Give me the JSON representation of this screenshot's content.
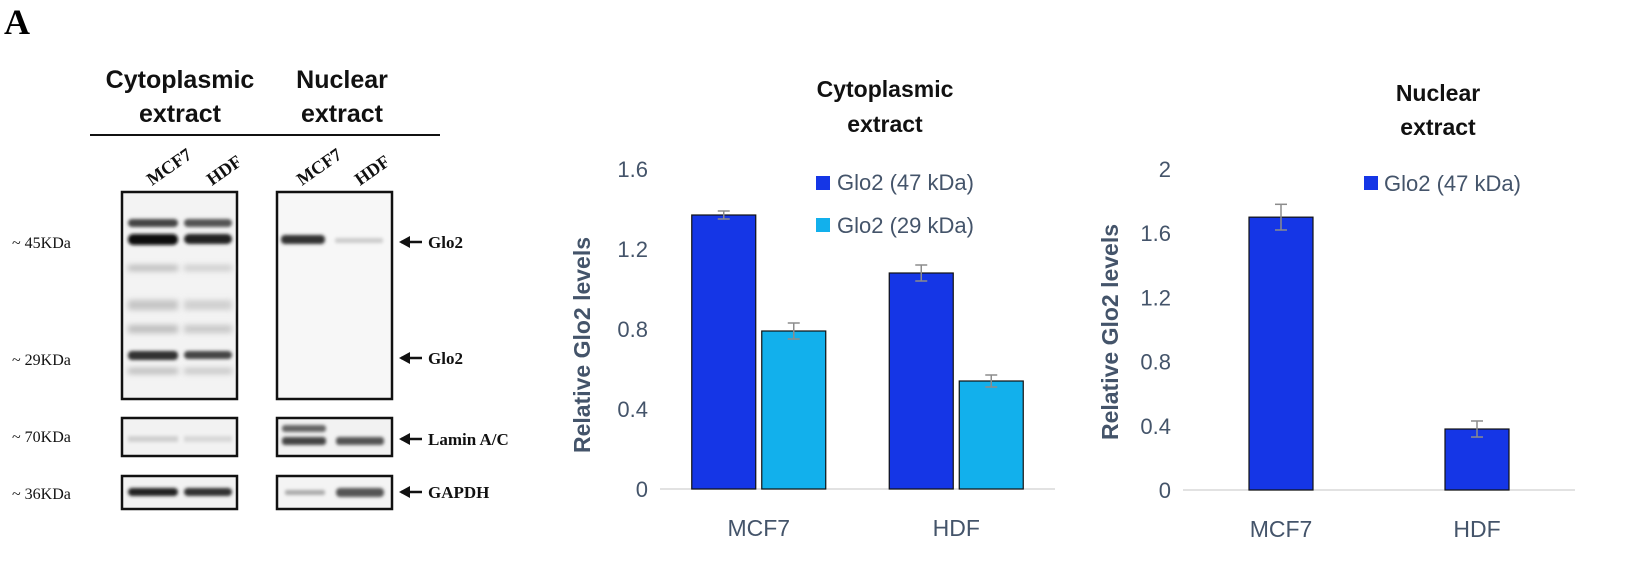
{
  "panel_letter": "A",
  "blot": {
    "cyto_header": [
      "Cytoplasmic",
      "extract"
    ],
    "nuc_header": [
      "Nuclear",
      "extract"
    ],
    "lanes": [
      "MCF7",
      "HDF",
      "MCF7",
      "HDF"
    ],
    "mw_labels": [
      "~ 45KDa",
      "~ 29KDa",
      "~ 70KDa",
      "~ 36KDa"
    ],
    "band_labels": [
      "Glo2",
      "Glo2",
      "Lamin A/C",
      "GAPDH"
    ]
  },
  "chart_data": [
    {
      "type": "bar",
      "title": [
        "Cytoplasmic",
        "extract"
      ],
      "categories": [
        "MCF7",
        "HDF"
      ],
      "series": [
        {
          "name": "Glo2 (47 kDa)",
          "values": [
            1.37,
            1.08
          ],
          "errors": [
            0.02,
            0.04
          ],
          "color": "#1536e6"
        },
        {
          "name": "Glo2 (29 kDa)",
          "values": [
            0.79,
            0.54
          ],
          "errors": [
            0.04,
            0.03
          ],
          "color": "#12b0ec"
        }
      ],
      "ylabel": "Relative Glo2 levels",
      "ylim": [
        0,
        1.6
      ],
      "yticks": [
        "0",
        "0.4",
        "0.8",
        "1.2",
        "1.6"
      ],
      "grid": false,
      "legend": "top-right"
    },
    {
      "type": "bar",
      "title": [
        "Nuclear",
        "extract"
      ],
      "categories": [
        "MCF7",
        "HDF"
      ],
      "series": [
        {
          "name": "Glo2 (47 kDa)",
          "values": [
            1.7,
            0.38
          ],
          "errors": [
            0.08,
            0.05
          ],
          "color": "#1536e6"
        }
      ],
      "ylabel": "Relative Glo2 levels",
      "ylim": [
        0,
        2
      ],
      "yticks": [
        "0",
        "0.4",
        "0.8",
        "1.2",
        "1.6",
        "2"
      ],
      "grid": false,
      "legend": "top-right"
    }
  ]
}
